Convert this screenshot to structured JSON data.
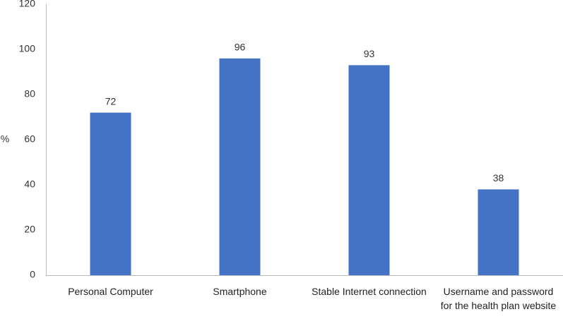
{
  "chart_data": {
    "type": "bar",
    "y_label": "%",
    "categories": [
      "Personal Computer",
      "Smartphone",
      "Stable Internet connection",
      "Username and password for the health plan website"
    ],
    "values": [
      72,
      96,
      93,
      38
    ],
    "color": "#4472c4",
    "ylim": [
      0,
      120
    ],
    "yticks": [
      0,
      20,
      40,
      60,
      80,
      100,
      120
    ],
    "grid": false
  }
}
